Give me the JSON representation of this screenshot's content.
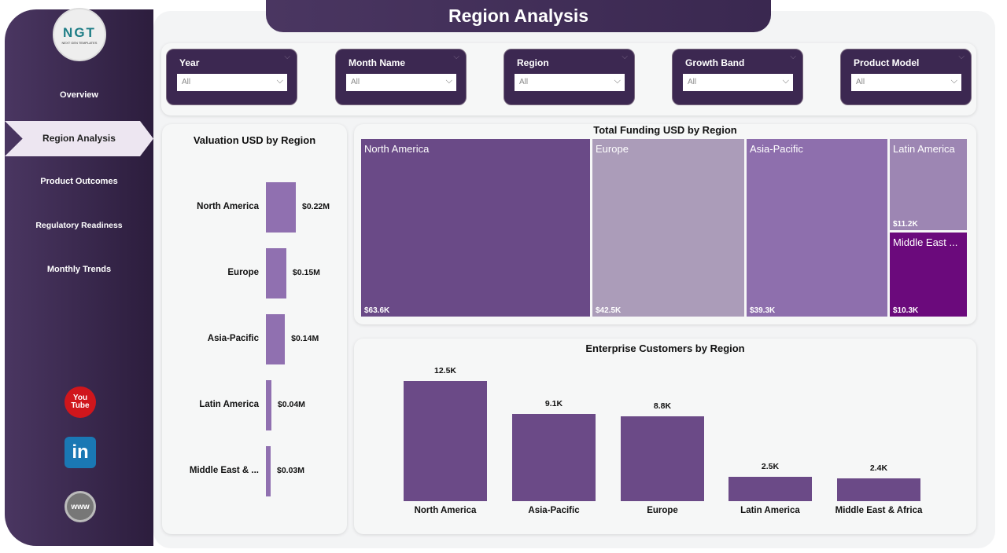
{
  "title": "Region Analysis",
  "logo": {
    "text": "NGT",
    "sub": "NEXT GEN TEMPLATES"
  },
  "nav": [
    "Overview",
    "Region Analysis",
    "Product Outcomes",
    "Regulatory Readiness",
    "Monthly Trends"
  ],
  "social": [
    "youtube-icon",
    "linkedin-icon",
    "globe-icon"
  ],
  "social_text": {
    "youtube": "You Tube",
    "linkedin": "in",
    "web": "www"
  },
  "filters": [
    {
      "label": "Year",
      "value": "All"
    },
    {
      "label": "Month Name",
      "value": "All"
    },
    {
      "label": "Region",
      "value": "All"
    },
    {
      "label": "Growth Band",
      "value": "All"
    },
    {
      "label": "Product Model",
      "value": "All"
    }
  ],
  "colors": {
    "accent": "#3c2851",
    "bar": "#6b4a87",
    "valuation_bar": "#9070b0"
  },
  "chart_data": [
    {
      "type": "bar",
      "orientation": "horizontal",
      "title": "Valuation USD by Region",
      "categories": [
        "North America",
        "Europe",
        "Asia-Pacific",
        "Latin America",
        "Middle East & ..."
      ],
      "values": [
        0.22,
        0.15,
        0.14,
        0.04,
        0.03
      ],
      "labels": [
        "$0.22M",
        "$0.15M",
        "$0.14M",
        "$0.04M",
        "$0.03M"
      ]
    },
    {
      "type": "treemap",
      "title": "Total Funding USD by Region",
      "categories": [
        "North America",
        "Europe",
        "Asia-Pacific",
        "Latin America",
        "Middle East ..."
      ],
      "values": [
        63.6,
        42.5,
        39.3,
        11.2,
        10.3
      ],
      "labels": [
        "$63.6K",
        "$42.5K",
        "$39.3K",
        "$11.2K",
        "$10.3K"
      ],
      "colors": [
        "#6a4a87",
        "#ab9cb9",
        "#8e6fad",
        "#9d86b3",
        "#6b0a7c"
      ]
    },
    {
      "type": "bar",
      "title": "Enterprise Customers by Region",
      "categories": [
        "North America",
        "Asia-Pacific",
        "Europe",
        "Latin America",
        "Middle East & Africa"
      ],
      "values": [
        12.5,
        9.1,
        8.8,
        2.5,
        2.4
      ],
      "labels": [
        "12.5K",
        "9.1K",
        "8.8K",
        "2.5K",
        "2.4K"
      ]
    }
  ]
}
